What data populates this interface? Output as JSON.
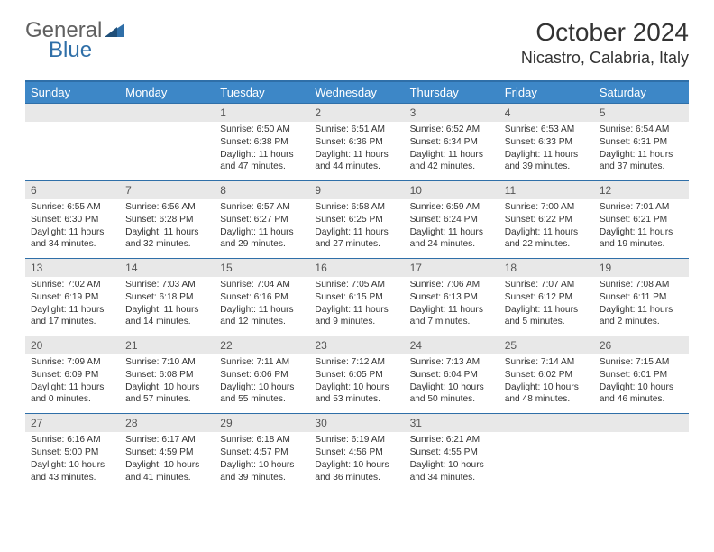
{
  "logo": {
    "part1": "General",
    "part2": "Blue"
  },
  "title": "October 2024",
  "location": "Nicastro, Calabria, Italy",
  "colors": {
    "header_bg": "#3d87c7",
    "header_text": "#ffffff",
    "daynum_bg": "#e8e8e8",
    "border": "#2f6fa8",
    "body_text": "#333333"
  },
  "weekdays": [
    "Sunday",
    "Monday",
    "Tuesday",
    "Wednesday",
    "Thursday",
    "Friday",
    "Saturday"
  ],
  "weeks": [
    {
      "nums": [
        "",
        "",
        "1",
        "2",
        "3",
        "4",
        "5"
      ],
      "cells": [
        {
          "sunrise": "",
          "sunset": "",
          "daylight": ""
        },
        {
          "sunrise": "",
          "sunset": "",
          "daylight": ""
        },
        {
          "sunrise": "Sunrise: 6:50 AM",
          "sunset": "Sunset: 6:38 PM",
          "daylight": "Daylight: 11 hours and 47 minutes."
        },
        {
          "sunrise": "Sunrise: 6:51 AM",
          "sunset": "Sunset: 6:36 PM",
          "daylight": "Daylight: 11 hours and 44 minutes."
        },
        {
          "sunrise": "Sunrise: 6:52 AM",
          "sunset": "Sunset: 6:34 PM",
          "daylight": "Daylight: 11 hours and 42 minutes."
        },
        {
          "sunrise": "Sunrise: 6:53 AM",
          "sunset": "Sunset: 6:33 PM",
          "daylight": "Daylight: 11 hours and 39 minutes."
        },
        {
          "sunrise": "Sunrise: 6:54 AM",
          "sunset": "Sunset: 6:31 PM",
          "daylight": "Daylight: 11 hours and 37 minutes."
        }
      ]
    },
    {
      "nums": [
        "6",
        "7",
        "8",
        "9",
        "10",
        "11",
        "12"
      ],
      "cells": [
        {
          "sunrise": "Sunrise: 6:55 AM",
          "sunset": "Sunset: 6:30 PM",
          "daylight": "Daylight: 11 hours and 34 minutes."
        },
        {
          "sunrise": "Sunrise: 6:56 AM",
          "sunset": "Sunset: 6:28 PM",
          "daylight": "Daylight: 11 hours and 32 minutes."
        },
        {
          "sunrise": "Sunrise: 6:57 AM",
          "sunset": "Sunset: 6:27 PM",
          "daylight": "Daylight: 11 hours and 29 minutes."
        },
        {
          "sunrise": "Sunrise: 6:58 AM",
          "sunset": "Sunset: 6:25 PM",
          "daylight": "Daylight: 11 hours and 27 minutes."
        },
        {
          "sunrise": "Sunrise: 6:59 AM",
          "sunset": "Sunset: 6:24 PM",
          "daylight": "Daylight: 11 hours and 24 minutes."
        },
        {
          "sunrise": "Sunrise: 7:00 AM",
          "sunset": "Sunset: 6:22 PM",
          "daylight": "Daylight: 11 hours and 22 minutes."
        },
        {
          "sunrise": "Sunrise: 7:01 AM",
          "sunset": "Sunset: 6:21 PM",
          "daylight": "Daylight: 11 hours and 19 minutes."
        }
      ]
    },
    {
      "nums": [
        "13",
        "14",
        "15",
        "16",
        "17",
        "18",
        "19"
      ],
      "cells": [
        {
          "sunrise": "Sunrise: 7:02 AM",
          "sunset": "Sunset: 6:19 PM",
          "daylight": "Daylight: 11 hours and 17 minutes."
        },
        {
          "sunrise": "Sunrise: 7:03 AM",
          "sunset": "Sunset: 6:18 PM",
          "daylight": "Daylight: 11 hours and 14 minutes."
        },
        {
          "sunrise": "Sunrise: 7:04 AM",
          "sunset": "Sunset: 6:16 PM",
          "daylight": "Daylight: 11 hours and 12 minutes."
        },
        {
          "sunrise": "Sunrise: 7:05 AM",
          "sunset": "Sunset: 6:15 PM",
          "daylight": "Daylight: 11 hours and 9 minutes."
        },
        {
          "sunrise": "Sunrise: 7:06 AM",
          "sunset": "Sunset: 6:13 PM",
          "daylight": "Daylight: 11 hours and 7 minutes."
        },
        {
          "sunrise": "Sunrise: 7:07 AM",
          "sunset": "Sunset: 6:12 PM",
          "daylight": "Daylight: 11 hours and 5 minutes."
        },
        {
          "sunrise": "Sunrise: 7:08 AM",
          "sunset": "Sunset: 6:11 PM",
          "daylight": "Daylight: 11 hours and 2 minutes."
        }
      ]
    },
    {
      "nums": [
        "20",
        "21",
        "22",
        "23",
        "24",
        "25",
        "26"
      ],
      "cells": [
        {
          "sunrise": "Sunrise: 7:09 AM",
          "sunset": "Sunset: 6:09 PM",
          "daylight": "Daylight: 11 hours and 0 minutes."
        },
        {
          "sunrise": "Sunrise: 7:10 AM",
          "sunset": "Sunset: 6:08 PM",
          "daylight": "Daylight: 10 hours and 57 minutes."
        },
        {
          "sunrise": "Sunrise: 7:11 AM",
          "sunset": "Sunset: 6:06 PM",
          "daylight": "Daylight: 10 hours and 55 minutes."
        },
        {
          "sunrise": "Sunrise: 7:12 AM",
          "sunset": "Sunset: 6:05 PM",
          "daylight": "Daylight: 10 hours and 53 minutes."
        },
        {
          "sunrise": "Sunrise: 7:13 AM",
          "sunset": "Sunset: 6:04 PM",
          "daylight": "Daylight: 10 hours and 50 minutes."
        },
        {
          "sunrise": "Sunrise: 7:14 AM",
          "sunset": "Sunset: 6:02 PM",
          "daylight": "Daylight: 10 hours and 48 minutes."
        },
        {
          "sunrise": "Sunrise: 7:15 AM",
          "sunset": "Sunset: 6:01 PM",
          "daylight": "Daylight: 10 hours and 46 minutes."
        }
      ]
    },
    {
      "nums": [
        "27",
        "28",
        "29",
        "30",
        "31",
        "",
        ""
      ],
      "cells": [
        {
          "sunrise": "Sunrise: 6:16 AM",
          "sunset": "Sunset: 5:00 PM",
          "daylight": "Daylight: 10 hours and 43 minutes."
        },
        {
          "sunrise": "Sunrise: 6:17 AM",
          "sunset": "Sunset: 4:59 PM",
          "daylight": "Daylight: 10 hours and 41 minutes."
        },
        {
          "sunrise": "Sunrise: 6:18 AM",
          "sunset": "Sunset: 4:57 PM",
          "daylight": "Daylight: 10 hours and 39 minutes."
        },
        {
          "sunrise": "Sunrise: 6:19 AM",
          "sunset": "Sunset: 4:56 PM",
          "daylight": "Daylight: 10 hours and 36 minutes."
        },
        {
          "sunrise": "Sunrise: 6:21 AM",
          "sunset": "Sunset: 4:55 PM",
          "daylight": "Daylight: 10 hours and 34 minutes."
        },
        {
          "sunrise": "",
          "sunset": "",
          "daylight": ""
        },
        {
          "sunrise": "",
          "sunset": "",
          "daylight": ""
        }
      ]
    }
  ]
}
